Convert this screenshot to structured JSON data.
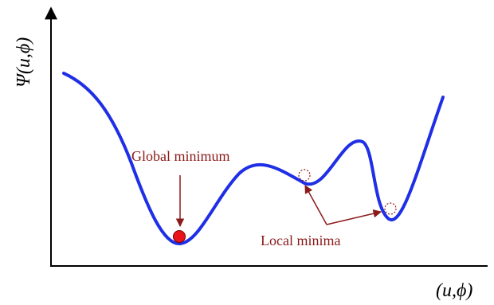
{
  "axes": {
    "y_label": "Ψ(u,ϕ)",
    "x_label": "(u,ϕ)"
  },
  "annotations": {
    "global_label": "Global minimum",
    "local_label": "Local minima"
  },
  "colors": {
    "curve": "#1f2fe6",
    "annotation": "#8b1a1a",
    "global_marker": "#e8141a",
    "axis": "#000000"
  }
}
